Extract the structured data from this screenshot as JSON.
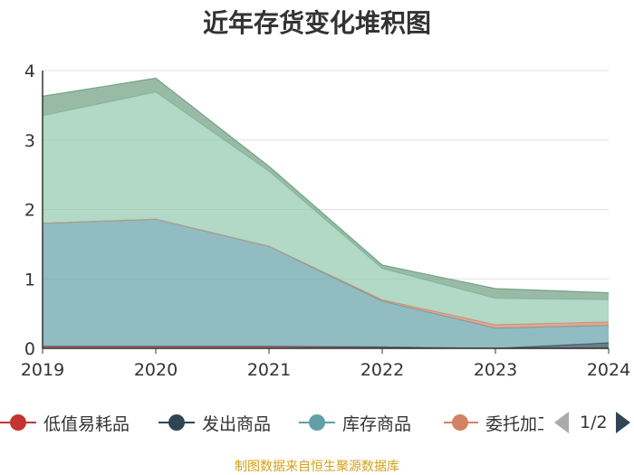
{
  "title": "近年存货变化堆积图",
  "source": "制图数据来自恒生聚源数据库",
  "legend_page": "1/2",
  "chart_data": {
    "type": "area",
    "stacked": true,
    "title": "近年存货变化堆积图",
    "xlabel": "",
    "ylabel": "",
    "x": [
      "2019",
      "2020",
      "2021",
      "2022",
      "2023",
      "2024"
    ],
    "ylim": [
      0,
      4
    ],
    "yticks": [
      "0",
      "1",
      "2",
      "3",
      "4"
    ],
    "grid": true,
    "legend_position": "bottom",
    "series": [
      {
        "name": "低值易耗品",
        "color": "#c23531",
        "values": [
          0.03,
          0.03,
          0.03,
          0.02,
          0.0,
          0.0
        ]
      },
      {
        "name": "发出商品",
        "color": "#2f4554",
        "values": [
          0.0,
          0.0,
          0.0,
          0.0,
          0.0,
          0.08
        ]
      },
      {
        "name": "库存商品",
        "color": "#61a0a8",
        "values": [
          1.77,
          1.83,
          1.44,
          0.66,
          0.29,
          0.25
        ]
      },
      {
        "name": "委托加工物资",
        "color": "#d48265",
        "values": [
          0.0,
          0.0,
          0.0,
          0.02,
          0.05,
          0.05
        ]
      },
      {
        "name": "",
        "color": "#91c7ae",
        "values": [
          1.55,
          1.83,
          1.08,
          0.45,
          0.38,
          0.32
        ]
      },
      {
        "name": "",
        "color": "#6e9e80",
        "values": [
          0.28,
          0.2,
          0.07,
          0.05,
          0.14,
          0.1
        ]
      }
    ]
  }
}
